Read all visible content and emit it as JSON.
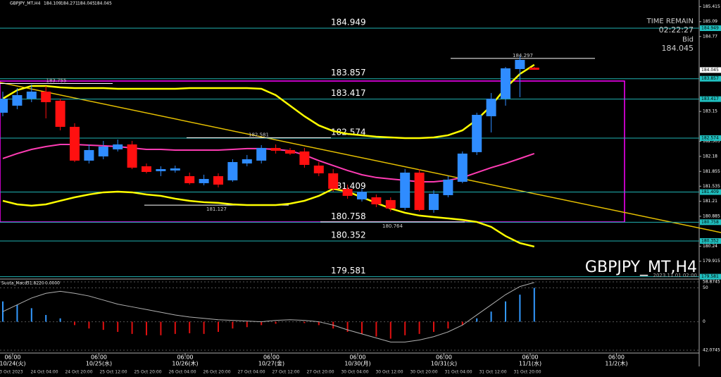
{
  "chart_data": [
    {
      "type": "candlestick",
      "title": "GBPJPY_MT,H4",
      "header_values": [
        184.109,
        184.271,
        184.045,
        184.045
      ],
      "info": {
        "time_label": "TIME REMAIN",
        "time_remain": "02:22:27",
        "bid_label": "Bid"
      },
      "bid": 184.045,
      "timestamp": "2023.11.01 02:00",
      "ylim": [
        179.545,
        185.558
      ],
      "yticks": [
        185.415,
        185.09,
        184.77,
        183.15,
        182.505,
        182.18,
        181.855,
        181.535,
        181.21,
        180.885,
        180.24,
        179.915
      ],
      "levels": [
        184.949,
        183.857,
        183.417,
        182.574,
        181.409,
        180.758,
        180.352,
        179.581
      ],
      "annotations": [
        183.755,
        182.581,
        181.127,
        180.764,
        184.297
      ],
      "top_times": [
        "06:00",
        "06:00",
        "06:00",
        "06:00",
        "06:00",
        "06:00",
        "06:00",
        "06:00"
      ],
      "top_dates": [
        "10/24(火)",
        "10/25(水)",
        "10/26(木)",
        "10/27(金)",
        "10/30(月)",
        "10/31(火)",
        "11/1(水)",
        "11/2(木)"
      ],
      "bottom_labels": [
        "23 Oct 2023",
        "24 Oct 04:00",
        "24 Oct 20:00",
        "25 Oct 12:00",
        "25 Oct 20:00",
        "26 Oct 04:00",
        "26 Oct 20:00",
        "27 Oct 04:00",
        "27 Oct 12:00",
        "27 Oct 20:00",
        "30 Oct 04:00",
        "30 Oct 12:00",
        "30 Oct 20:00",
        "31 Oct 04:00",
        "31 Oct 12:00",
        "31 Oct 20:00"
      ],
      "up_color": "#2f8cff",
      "down_color": "#ff1010",
      "open": [
        183.123,
        183.275,
        183.427,
        183.579,
        183.382,
        182.818,
        182.088,
        182.179,
        182.331,
        182.438,
        181.966,
        181.86,
        181.875,
        181.753,
        181.601,
        181.753,
        181.662,
        182.027,
        182.088,
        182.362,
        182.316,
        182.286,
        181.981,
        181.814,
        181.479,
        181.251,
        181.296,
        181.236,
        181.068,
        181.829,
        181.022,
        181.342,
        181.631,
        182.271,
        183.047,
        183.427,
        184.066,
        184.097
      ],
      "high": [
        183.579,
        183.656,
        183.732,
        183.701,
        183.427,
        182.895,
        182.438,
        182.514,
        182.544,
        182.514,
        182.027,
        181.966,
        181.981,
        181.829,
        181.784,
        181.814,
        182.118,
        182.21,
        182.423,
        182.438,
        182.362,
        182.362,
        182.057,
        181.905,
        181.57,
        181.479,
        181.357,
        181.296,
        181.905,
        181.905,
        181.449,
        181.753,
        182.286,
        183.123,
        183.549,
        184.112,
        184.34,
        184.112
      ],
      "low": [
        183.047,
        183.199,
        183.351,
        183.001,
        182.742,
        182.057,
        182.027,
        182.118,
        182.286,
        181.905,
        181.814,
        181.753,
        181.829,
        181.57,
        181.555,
        181.51,
        181.631,
        181.966,
        182.027,
        182.24,
        182.21,
        181.936,
        181.753,
        181.418,
        181.266,
        181.205,
        181.083,
        180.992,
        181.022,
        180.992,
        180.962,
        181.296,
        181.601,
        182.21,
        182.697,
        183.275,
        183.458,
        184.051
      ],
      "close": [
        183.427,
        183.503,
        183.579,
        183.351,
        182.818,
        182.088,
        182.316,
        182.392,
        182.438,
        181.936,
        181.844,
        181.905,
        181.92,
        181.601,
        181.692,
        181.57,
        182.057,
        182.118,
        182.362,
        182.301,
        182.24,
        181.996,
        181.814,
        181.479,
        181.327,
        181.418,
        181.144,
        181.053,
        181.829,
        181.022,
        181.373,
        181.677,
        182.24,
        183.077,
        183.427,
        184.082,
        184.264,
        184.051
      ],
      "series": [
        {
          "color": "#ffff00",
          "values": [
            183.427,
            183.61,
            183.701,
            183.701,
            183.671,
            183.655,
            183.655,
            183.655,
            183.64,
            183.64,
            183.64,
            183.64,
            183.64,
            183.655,
            183.655,
            183.655,
            183.655,
            183.655,
            183.64,
            183.503,
            183.275,
            183.047,
            182.849,
            182.727,
            182.666,
            182.636,
            182.605,
            182.59,
            182.575,
            182.575,
            182.59,
            182.636,
            182.742,
            182.971,
            183.275,
            183.655,
            183.96,
            184.158
          ]
        },
        {
          "color": "#ffff00",
          "values": [
            181.22,
            181.144,
            181.114,
            181.144,
            181.22,
            181.296,
            181.357,
            181.403,
            181.418,
            181.403,
            181.357,
            181.327,
            181.266,
            181.22,
            181.19,
            181.175,
            181.144,
            181.129,
            181.129,
            181.129,
            181.159,
            181.22,
            181.327,
            181.479,
            181.418,
            181.296,
            181.175,
            181.053,
            180.962,
            180.901,
            180.87,
            180.84,
            180.809,
            180.764,
            180.657,
            180.459,
            180.307,
            180.231
          ]
        },
        {
          "color": "#ff3cb4",
          "values": [
            182.133,
            182.24,
            182.331,
            182.392,
            182.438,
            182.438,
            182.423,
            182.408,
            182.392,
            182.362,
            182.331,
            182.331,
            182.316,
            182.316,
            182.316,
            182.316,
            182.331,
            182.347,
            182.347,
            182.331,
            182.301,
            182.21,
            182.088,
            181.981,
            181.875,
            181.783,
            181.723,
            181.692,
            181.662,
            181.631,
            181.631,
            181.662,
            181.723,
            181.829,
            181.936,
            182.027,
            182.133,
            182.24
          ]
        }
      ]
    },
    {
      "type": "macd",
      "title": "Suuta_Macd",
      "header_values": [
        51.822,
        0.0
      ],
      "header_labels": [
        "51.8220",
        "0.0000"
      ],
      "ylim": [
        -42.0745,
        58.8745
      ],
      "yticks": [
        58.8745,
        50,
        0,
        {
          "value": -42.0745,
          "label": "42.0745"
        }
      ],
      "up_color": "#3399ff",
      "down_color": "#e01010",
      "line_color": "#b0b0b0",
      "values": [
        30,
        25,
        20,
        10,
        5,
        -5,
        -10,
        -12,
        -15,
        -18,
        -20,
        -20,
        -18,
        -17,
        -18,
        -15,
        -10,
        -8,
        -5,
        -3,
        0,
        -2,
        -5,
        -10,
        -15,
        -18,
        -22,
        -25,
        -20,
        -18,
        -15,
        -10,
        -5,
        5,
        15,
        30,
        40,
        50
      ],
      "line": [
        15,
        25,
        35,
        42,
        45,
        42,
        38,
        32,
        26,
        22,
        18,
        14,
        10,
        7,
        5,
        3,
        2,
        1,
        0,
        2,
        3,
        2,
        0,
        -5,
        -12,
        -18,
        -24,
        -30,
        -30,
        -27,
        -22,
        -15,
        -5,
        10,
        25,
        40,
        52,
        58
      ]
    }
  ]
}
